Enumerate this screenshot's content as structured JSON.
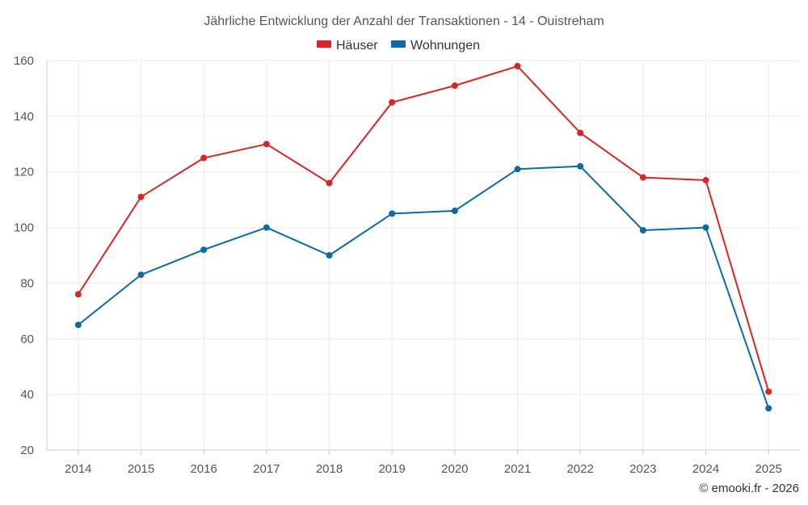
{
  "chart_data": {
    "type": "line",
    "title": "Jährliche Entwicklung der Anzahl der Transaktionen - 14 - Ouistreham",
    "categories": [
      "2014",
      "2015",
      "2016",
      "2017",
      "2018",
      "2019",
      "2020",
      "2021",
      "2022",
      "2023",
      "2024",
      "2025"
    ],
    "series": [
      {
        "name": "Häuser",
        "color": "#d62728",
        "values": [
          76,
          111,
          125,
          130,
          116,
          145,
          151,
          158,
          134,
          118,
          117,
          41
        ]
      },
      {
        "name": "Wohnungen",
        "color": "#0b6aa2",
        "values": [
          65,
          83,
          92,
          100,
          90,
          105,
          106,
          121,
          122,
          99,
          100,
          35
        ]
      }
    ],
    "ylim": [
      20,
      160
    ],
    "yticks": [
      "20",
      "40",
      "60",
      "80",
      "100",
      "120",
      "140",
      "160"
    ],
    "grid": true,
    "legend": "top-center",
    "xlabel": "",
    "ylabel": ""
  },
  "credit": "© emooki.fr - 2026"
}
